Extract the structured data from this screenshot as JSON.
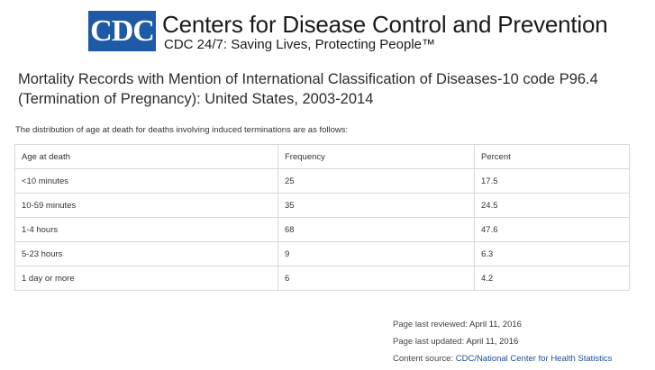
{
  "header": {
    "logo_text": "CDC",
    "org_name": "Centers for Disease Control and Prevention",
    "tagline": "CDC 24/7: Saving Lives, Protecting People™"
  },
  "page_title": "Mortality Records with Mention of International Classification of Diseases-10 code P96.4 (Termination of Pregnancy): United States, 2003-2014",
  "intro_text": "The distribution of age at death for deaths involving induced terminations are as follows:",
  "table": {
    "headers": [
      "Age at death",
      "Frequency",
      "Percent"
    ],
    "rows": [
      [
        "<10 minutes",
        "25",
        "17.5"
      ],
      [
        "10-59 minutes",
        "35",
        "24.5"
      ],
      [
        "1-4 hours",
        "68",
        "47.6"
      ],
      [
        "5-23 hours",
        "9",
        "6.3"
      ],
      [
        "1 day or more",
        "6",
        "4.2"
      ]
    ]
  },
  "meta": {
    "reviewed_label": "Page last reviewed:",
    "reviewed_value": "April 11, 2016",
    "updated_label": "Page last updated:",
    "updated_value": "April 11, 2016",
    "source_label": "Content source:",
    "source_value": "CDC/National Center for Health Statistics"
  },
  "colors": {
    "logo_blue": "#1f5aa6",
    "link_blue": "#1f4e99"
  }
}
